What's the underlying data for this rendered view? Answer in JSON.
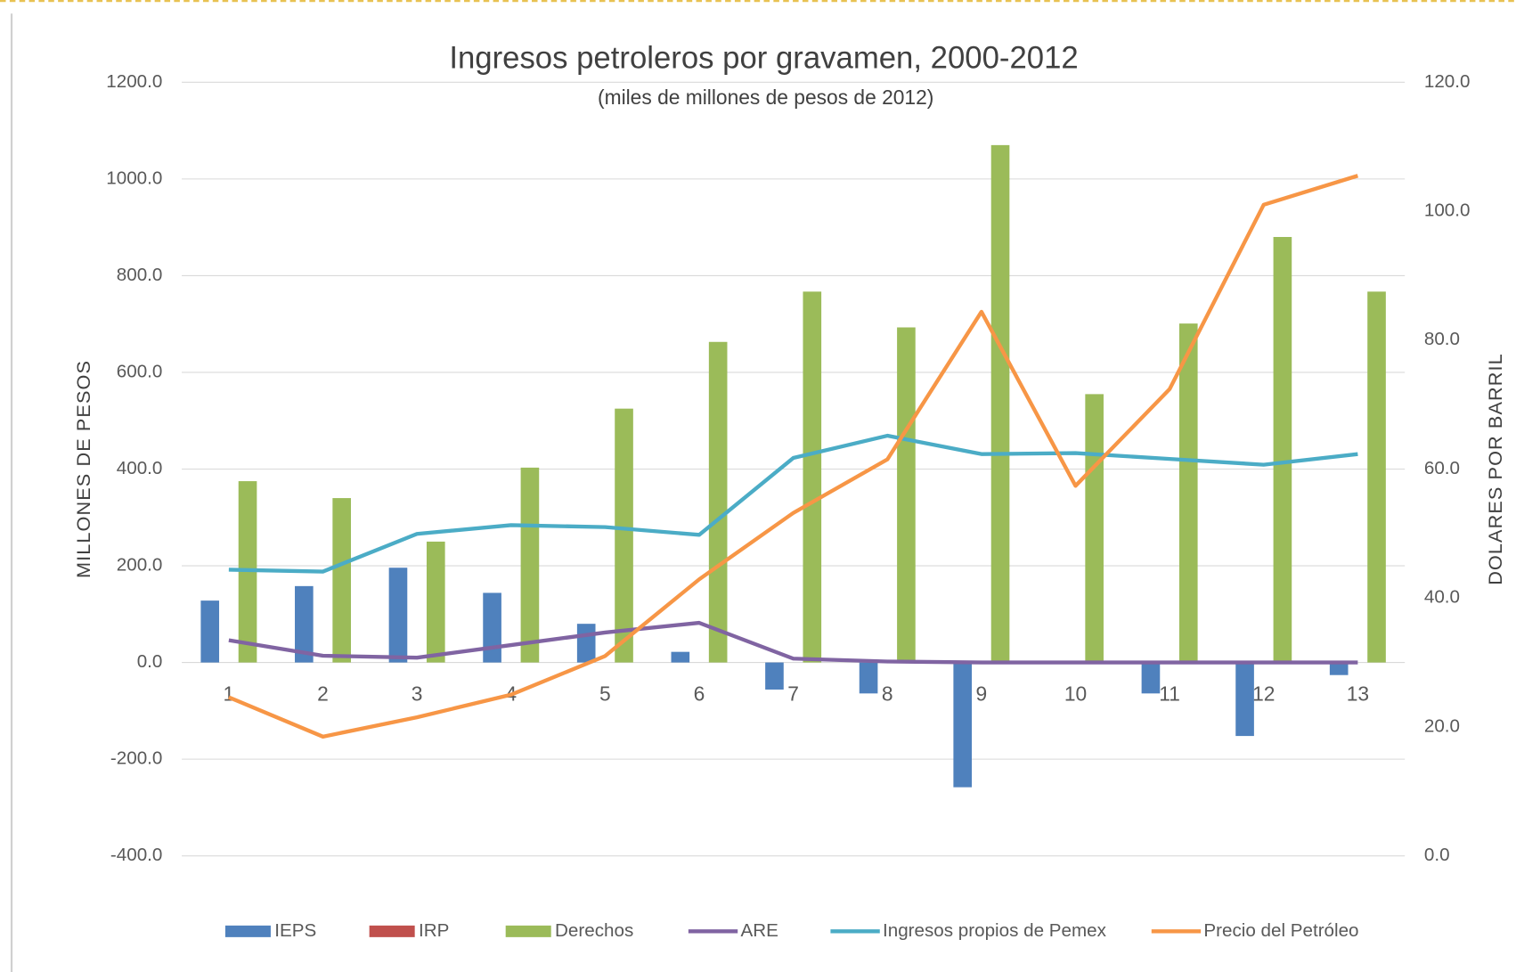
{
  "chart_data": {
    "type": "combo",
    "title": "Ingresos petroleros por  gravamen, 2000-2012",
    "subtitle": "(miles de millones de pesos de 2012)",
    "ylabel": "MILLONES DE PESOS",
    "y2label": "DOLARES POR BARRIL",
    "categories": [
      "1",
      "2",
      "3",
      "4",
      "5",
      "6",
      "7",
      "8",
      "9",
      "10",
      "11",
      "12",
      "13"
    ],
    "series": [
      {
        "name": "IEPS",
        "type": "bar",
        "color": "#4f81bd",
        "values": [
          128,
          158,
          196,
          144,
          80,
          22,
          -56,
          -64,
          -258,
          0,
          -64,
          -152,
          -26
        ]
      },
      {
        "name": "IRP",
        "type": "bar",
        "color": "#c0504d",
        "values": [
          0,
          0,
          0,
          0,
          0,
          0,
          0,
          0,
          0,
          0,
          0,
          0,
          0
        ]
      },
      {
        "name": "Derechos",
        "type": "bar",
        "color": "#9bbb59",
        "values": [
          375,
          340,
          250,
          403,
          525,
          663,
          767,
          693,
          1070,
          555,
          701,
          880,
          767
        ]
      },
      {
        "name": "ARE",
        "type": "line",
        "color": "#8064a2",
        "values": [
          46,
          14,
          10,
          36,
          62,
          82,
          8,
          2,
          0,
          0,
          0,
          0,
          0
        ]
      },
      {
        "name": "Ingresos propios de Pemex",
        "type": "line",
        "color": "#4bacc6",
        "values": [
          192,
          188,
          266,
          284,
          280,
          264,
          423,
          469,
          431,
          433,
          421,
          409,
          431
        ]
      },
      {
        "name": "Precio del Petróleo",
        "type": "line",
        "axis": "y2",
        "color": "#f79646",
        "values": [
          24.6,
          18.5,
          21.5,
          25.0,
          31.0,
          42.9,
          53.2,
          61.5,
          84.4,
          57.4,
          72.4,
          101.0,
          105.5
        ]
      }
    ],
    "ylim": [
      -400,
      1200
    ],
    "yticks": [
      {
        "value": -400,
        "label": "-400.0"
      },
      {
        "value": -200,
        "label": "-200.0"
      },
      {
        "value": 0,
        "label": "0.0"
      },
      {
        "value": 200,
        "label": "200.0"
      },
      {
        "value": 400,
        "label": "400.0"
      },
      {
        "value": 600,
        "label": "600.0"
      },
      {
        "value": 800,
        "label": "800.0"
      },
      {
        "value": 1000,
        "label": "1000.0"
      },
      {
        "value": 1200,
        "label": "1200.0"
      }
    ],
    "y2lim": [
      0,
      120
    ],
    "y2ticks": [
      {
        "value": 0,
        "label": "0.0"
      },
      {
        "value": 20,
        "label": "20.0"
      },
      {
        "value": 40,
        "label": "40.0"
      },
      {
        "value": 60,
        "label": "60.0"
      },
      {
        "value": 80,
        "label": "80.0"
      },
      {
        "value": 100,
        "label": "100.0"
      },
      {
        "value": 120,
        "label": "120.0"
      }
    ],
    "grid": true,
    "legend": "bottom"
  }
}
